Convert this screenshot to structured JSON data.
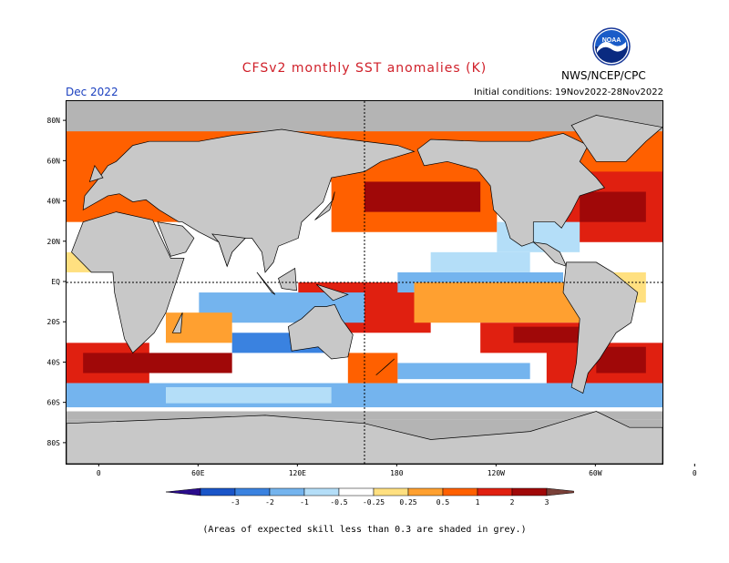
{
  "title": "CFSv2 monthly SST anomalies (K)",
  "organization": "NWS/NCEP/CPC",
  "logo_text": "NOAA",
  "forecast_month": "Dec 2022",
  "initial_conditions": "Initial conditions: 19Nov2022-28Nov2022",
  "footnote": "(Areas of expected skill less than 0.3 are shaded in grey.)",
  "map": {
    "lat_labels": [
      "80N",
      "60N",
      "40N",
      "20N",
      "EQ",
      "20S",
      "40S",
      "60S",
      "80S"
    ],
    "lon_labels": [
      "0",
      "60E",
      "120E",
      "180",
      "120W",
      "60W",
      "0"
    ],
    "land_color": "#c8c8c8",
    "skill_mask_color": "#b4b4b4"
  },
  "colorbar": {
    "labels": [
      "-3",
      "-2",
      "-1",
      "-0.5",
      "-0.25",
      "0.25",
      "0.5",
      "1",
      "2",
      "3"
    ],
    "colors": [
      "#2a0c8c",
      "#1a55c8",
      "#3a82e0",
      "#74b4ee",
      "#b4def8",
      "#ffffff",
      "#ffe080",
      "#ffa030",
      "#ff6000",
      "#e02010",
      "#a00808",
      "#7a4038"
    ]
  }
}
